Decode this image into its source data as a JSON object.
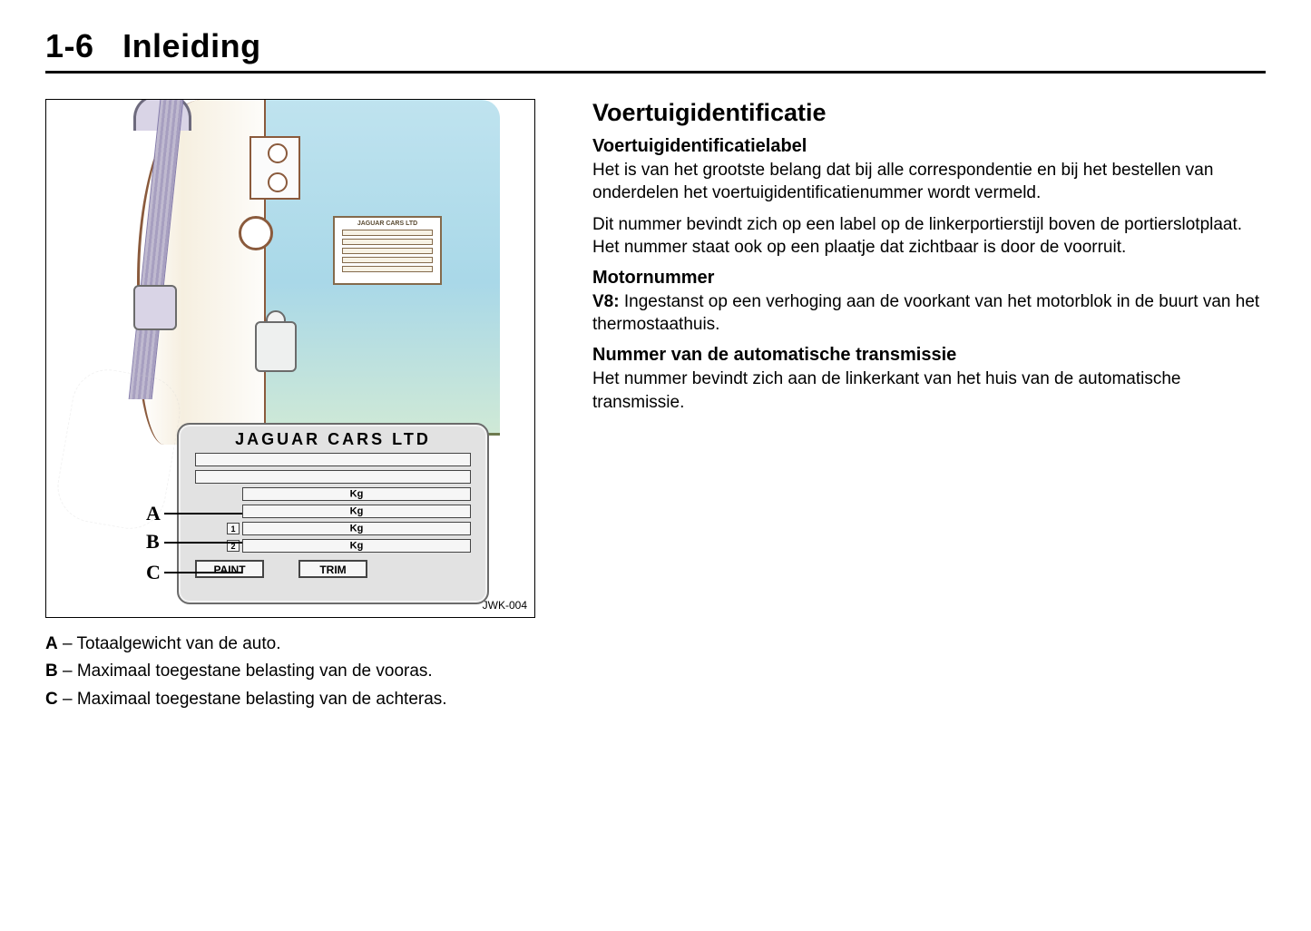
{
  "page": {
    "header_number": "1-6",
    "header_spacer": " ",
    "header_title": "Inleiding"
  },
  "figure": {
    "code": "JWK-004",
    "plate_title": "JAGUAR  CARS  LTD",
    "kg_unit": "Kg",
    "row_num_1": "1",
    "row_num_2": "2",
    "box_paint": "PAINT",
    "box_trim": "TRIM",
    "mini_label_title": "JAGUAR CARS LTD",
    "callout_a": "A",
    "callout_b": "B",
    "callout_c": "C",
    "colors": {
      "door_panel_top": "#bfe3ef",
      "door_panel_mid": "#a9d8e8",
      "door_panel_bottom": "#cfe9d6",
      "line_brown": "#8a5a3c",
      "plate_bg": "#e2e2e2",
      "plate_border": "#6b6b6b",
      "belt": "#a79fc0"
    }
  },
  "legend": {
    "a": {
      "label": "A",
      "sep": " – ",
      "text": "Totaalgewicht van de auto."
    },
    "b": {
      "label": "B",
      "sep": " – ",
      "text": "Maximaal toegestane belasting van de vooras."
    },
    "c": {
      "label": "C",
      "sep": " – ",
      "text": "Maximaal toegestane belasting van de achteras."
    }
  },
  "right": {
    "h2": "Voertuigidentificatie",
    "sec1_h3": "Voertuigidentificatielabel",
    "sec1_p1": "Het is van het grootste belang dat bij alle correspondentie en bij het bestellen van onderdelen het voertuigidentificatienummer wordt vermeld.",
    "sec1_p2": "Dit nummer bevindt zich op een label op de linkerportierstijl boven de portierslotplaat. Het nummer staat ook op een plaatje dat zichtbaar is door de voorruit.",
    "sec2_h3": "Motornummer",
    "sec2_bold": "V8:",
    "sec2_rest": " Ingestanst op een verhoging aan de voorkant van het motorblok in de buurt van het thermostaathuis.",
    "sec3_h3": "Nummer van de automatische transmissie",
    "sec3_p": "Het nummer bevindt zich aan de linkerkant van het huis van de automatische transmissie."
  }
}
